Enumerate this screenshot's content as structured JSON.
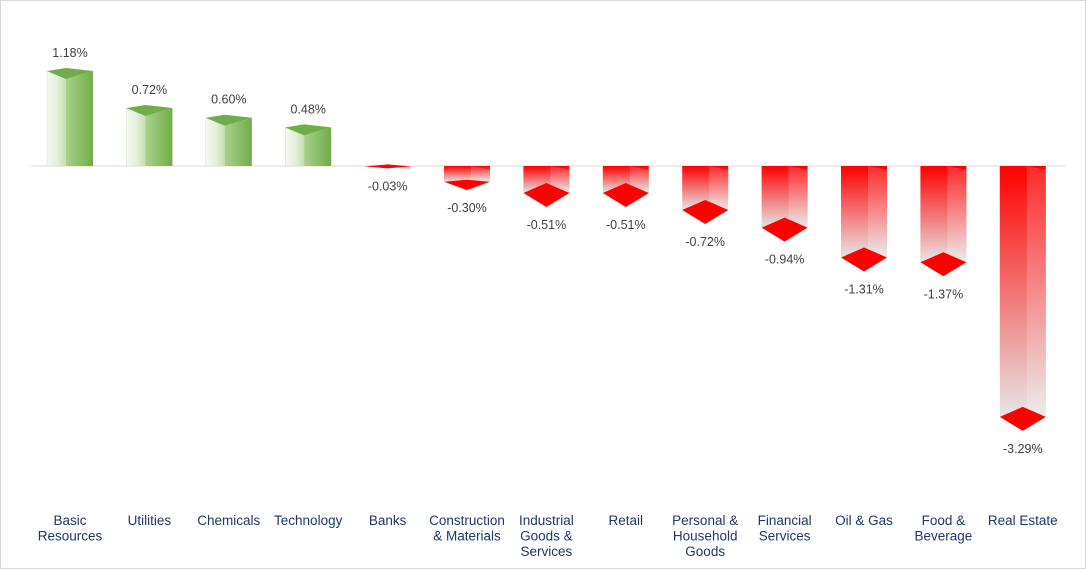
{
  "chart_data": {
    "type": "bar",
    "categories": [
      [
        "Basic",
        "Resources"
      ],
      [
        "Utilities"
      ],
      [
        "Chemicals"
      ],
      [
        "Technology"
      ],
      [
        "Banks"
      ],
      [
        "Construction",
        "& Materials"
      ],
      [
        "Industrial",
        "Goods &",
        "Services"
      ],
      [
        "Retail"
      ],
      [
        "Personal &",
        "Household",
        "Goods"
      ],
      [
        "Financial",
        "Services"
      ],
      [
        "Oil & Gas"
      ],
      [
        "Food &",
        "Beverage"
      ],
      [
        "Real Estate"
      ]
    ],
    "values": [
      1.18,
      0.72,
      0.6,
      0.48,
      -0.03,
      -0.3,
      -0.51,
      -0.51,
      -0.72,
      -0.94,
      -1.31,
      -1.37,
      -3.29
    ],
    "value_labels": [
      "1.18%",
      "0.72%",
      "0.60%",
      "0.48%",
      "-0.03%",
      "-0.30%",
      "-0.51%",
      "-0.51%",
      "-0.72%",
      "-0.94%",
      "-1.31%",
      "-1.37%",
      "-3.29%"
    ],
    "ylim": [
      -3.29,
      1.18
    ],
    "grid": false,
    "legend": "none",
    "colors": {
      "positive": "#70ad47",
      "positive_light": "#e2efd9",
      "negative": "#ff0000",
      "negative_light": "#e6e6e6",
      "baseline": "#d9d9d9"
    }
  }
}
